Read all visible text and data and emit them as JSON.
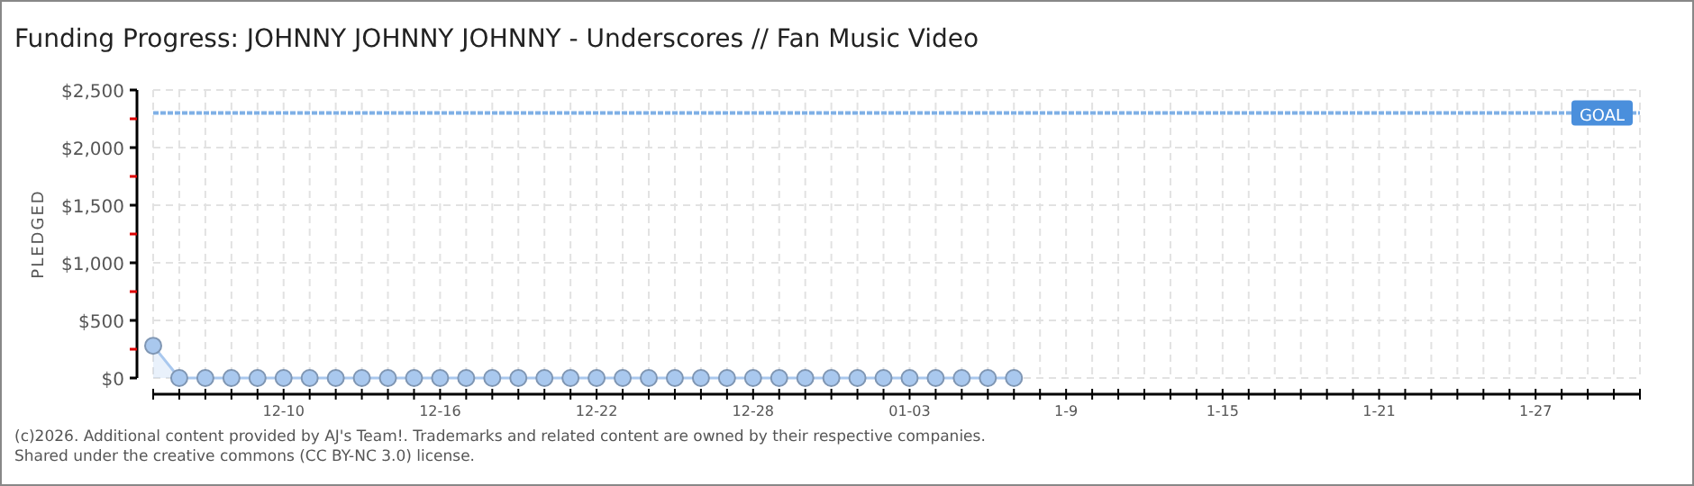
{
  "chart_data": {
    "type": "area",
    "title": "Funding Progress: JOHNNY JOHNNY JOHNNY - Underscores // Fan Music Video",
    "ylabel": "PLEDGED",
    "categories": [
      null,
      null,
      null,
      null,
      null,
      "12-10",
      null,
      null,
      null,
      null,
      null,
      "12-16",
      null,
      null,
      null,
      null,
      null,
      "12-22",
      null,
      null,
      null,
      null,
      null,
      "12-28",
      null,
      null,
      null,
      null,
      null,
      "01-03",
      null,
      null,
      null,
      null,
      null,
      "1-9",
      null,
      null,
      null,
      null,
      null,
      "1-15",
      null,
      null,
      null,
      null,
      null,
      "1-21",
      null,
      null,
      null,
      null,
      null,
      "1-27",
      null,
      null,
      null,
      null
    ],
    "series": [
      {
        "color": "#a9c8ee",
        "values": [
          280,
          0,
          0,
          0,
          0,
          0,
          0,
          0,
          0,
          0,
          0,
          0,
          0,
          0,
          0,
          0,
          0,
          0,
          0,
          0,
          0,
          0,
          0,
          0,
          0,
          0,
          0,
          0,
          0,
          0,
          0,
          0,
          0,
          0,
          null,
          null,
          null,
          null,
          null,
          null,
          null,
          null,
          null,
          null,
          null,
          null,
          null,
          null,
          null,
          null,
          null,
          null,
          null,
          null,
          null,
          null,
          null,
          null
        ]
      }
    ],
    "ylim": [
      0,
      2500
    ],
    "yticks": [
      {
        "value": 0,
        "label": "$0"
      },
      {
        "value": 250,
        "label": null
      },
      {
        "value": 500,
        "label": "$500"
      },
      {
        "value": 750,
        "label": null
      },
      {
        "value": 1000,
        "label": "$1,000"
      },
      {
        "value": 1250,
        "label": null
      },
      {
        "value": 1500,
        "label": "$1,500"
      },
      {
        "value": 1750,
        "label": null
      },
      {
        "value": 2000,
        "label": "$2,000"
      },
      {
        "value": 2250,
        "label": null
      },
      {
        "value": 2500,
        "label": "$2,500"
      }
    ],
    "ref_lines": [
      {
        "axis": "y",
        "value": 2300,
        "label": "GOAL",
        "color": "#4a8fdc",
        "line_style": "dotted"
      }
    ],
    "grid": true,
    "marker": "circle",
    "annotations": [
      "(c)2026. Additional content provided by AJ's Team!. Trademarks and related content are owned by their respective companies.",
      "Shared under the creative commons (CC BY-NC 3.0) license."
    ]
  }
}
